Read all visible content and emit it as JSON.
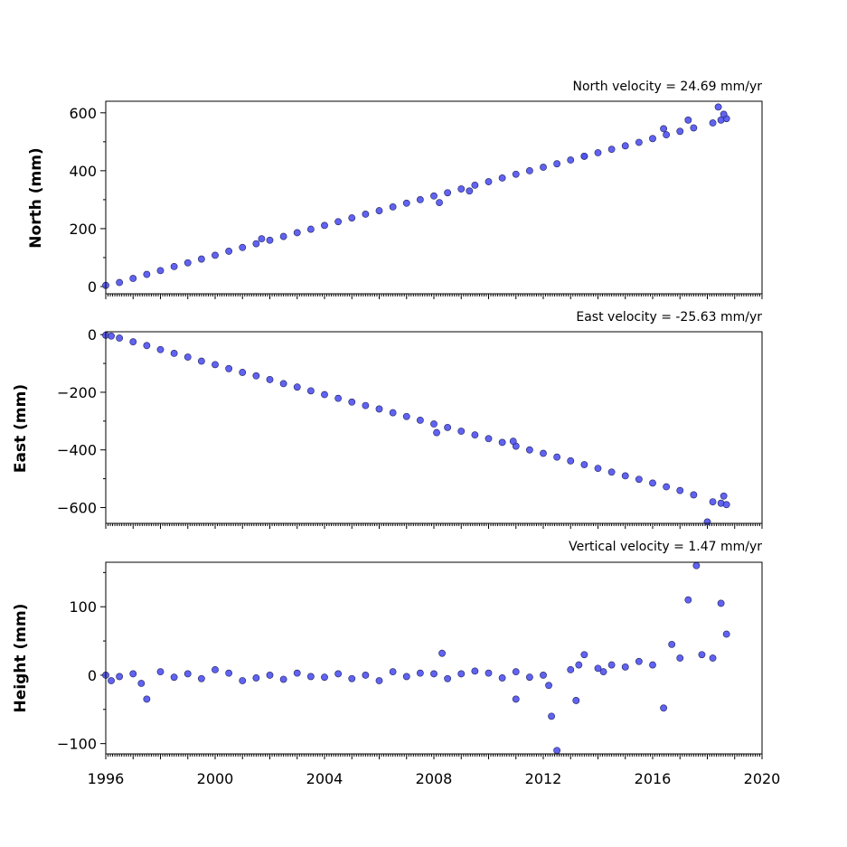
{
  "chart_data": [
    {
      "type": "scatter",
      "title": "North velocity = 24.69 mm/yr",
      "ylabel": "North (mm)",
      "xlim": [
        1996,
        2020
      ],
      "ylim": [
        -25,
        640
      ],
      "yticks": [
        0,
        200,
        400,
        600
      ],
      "xticks_labeled": false,
      "grid": false,
      "legend": "none",
      "series": [
        {
          "x": [
            1996.0,
            1996.5,
            1997.0,
            1997.5,
            1998.0,
            1998.5,
            1999.0,
            1999.5,
            2000.0,
            2000.5,
            2001.0,
            2001.5,
            2002.0,
            2002.5,
            2003.0,
            2003.5,
            2004.0,
            2004.5,
            2005.0,
            2005.5,
            2006.0,
            2006.5,
            2007.0,
            2007.5,
            2008.0,
            2008.5,
            2009.0,
            2009.5,
            2010.0,
            2010.5,
            2011.0,
            2011.5,
            2012.0,
            2012.5,
            2013.0,
            2013.5,
            2014.0,
            2014.5,
            2015.0,
            2015.5,
            2016.0,
            2016.5,
            2017.0,
            2017.5,
            2018.2,
            2018.5,
            2018.7,
            2008.2,
            2009.3,
            2001.7,
            2013.5,
            2016.4,
            2017.3,
            2018.4,
            2018.6
          ],
          "y": [
            4,
            14,
            28,
            42,
            55,
            69,
            82,
            95,
            108,
            122,
            135,
            148,
            160,
            173,
            186,
            198,
            211,
            224,
            237,
            250,
            262,
            275,
            288,
            300,
            313,
            324,
            337,
            350,
            362,
            375,
            388,
            400,
            412,
            424,
            437,
            450,
            462,
            474,
            486,
            498,
            511,
            524,
            536,
            548,
            565,
            575,
            580,
            290,
            330,
            165,
            450,
            545,
            575,
            620,
            595
          ]
        }
      ]
    },
    {
      "type": "scatter",
      "title": "East velocity = -25.63 mm/yr",
      "ylabel": "East (mm)",
      "xlim": [
        1996,
        2020
      ],
      "ylim": [
        -655,
        10
      ],
      "yticks": [
        0,
        -200,
        -400,
        -600
      ],
      "xticks_labeled": false,
      "grid": false,
      "legend": "none",
      "series": [
        {
          "x": [
            1996.0,
            1996.2,
            1996.5,
            1997.0,
            1997.5,
            1998.0,
            1998.5,
            1999.0,
            1999.5,
            2000.0,
            2000.5,
            2001.0,
            2001.5,
            2002.0,
            2002.5,
            2003.0,
            2003.5,
            2004.0,
            2004.5,
            2005.0,
            2005.5,
            2006.0,
            2006.5,
            2007.0,
            2007.5,
            2008.0,
            2008.5,
            2009.0,
            2009.5,
            2010.0,
            2010.5,
            2011.0,
            2011.5,
            2012.0,
            2012.5,
            2013.0,
            2013.5,
            2014.0,
            2014.5,
            2015.0,
            2015.5,
            2016.0,
            2016.5,
            2017.0,
            2017.5,
            2018.2,
            2018.5,
            2018.7,
            2010.9,
            2008.1,
            2018.0,
            2018.6
          ],
          "y": [
            -2,
            -5,
            -12,
            -25,
            -38,
            -52,
            -65,
            -78,
            -92,
            -104,
            -118,
            -131,
            -143,
            -156,
            -170,
            -182,
            -195,
            -208,
            -221,
            -234,
            -246,
            -258,
            -271,
            -284,
            -297,
            -310,
            -322,
            -335,
            -348,
            -361,
            -374,
            -387,
            -400,
            -412,
            -425,
            -438,
            -451,
            -464,
            -477,
            -490,
            -502,
            -515,
            -528,
            -541,
            -556,
            -580,
            -585,
            -590,
            -370,
            -340,
            -650,
            -560
          ]
        }
      ]
    },
    {
      "type": "scatter",
      "title": "Vertical velocity = 1.47 mm/yr",
      "ylabel": "Height (mm)",
      "xlim": [
        1996,
        2020
      ],
      "ylim": [
        -115,
        165
      ],
      "yticks": [
        -100,
        0,
        100
      ],
      "xticks": [
        1996,
        2000,
        2004,
        2008,
        2012,
        2016,
        2020
      ],
      "grid": false,
      "legend": "none",
      "series": [
        {
          "x": [
            1996.0,
            1996.2,
            1996.5,
            1997.0,
            1997.3,
            1997.5,
            1998.0,
            1998.5,
            1999.0,
            1999.5,
            2000.0,
            2000.5,
            2001.0,
            2001.5,
            2002.0,
            2002.5,
            2003.0,
            2003.5,
            2004.0,
            2004.5,
            2005.0,
            2005.5,
            2006.0,
            2006.5,
            2007.0,
            2007.5,
            2008.0,
            2008.3,
            2008.5,
            2009.0,
            2009.5,
            2010.0,
            2010.5,
            2011.0,
            2011.5,
            2012.0,
            2012.3,
            2012.5,
            2013.0,
            2013.3,
            2013.5,
            2014.0,
            2014.5,
            2015.0,
            2015.5,
            2016.0,
            2016.4,
            2016.7,
            2017.0,
            2017.3,
            2017.6,
            2017.8,
            2018.2,
            2018.5,
            2018.7,
            2011.0,
            2012.2,
            2013.2,
            2014.2
          ],
          "y": [
            0,
            -8,
            -2,
            2,
            -12,
            -35,
            5,
            -3,
            2,
            -5,
            8,
            3,
            -8,
            -4,
            0,
            -6,
            3,
            -2,
            -3,
            2,
            -5,
            0,
            -8,
            5,
            -2,
            3,
            2,
            32,
            -5,
            2,
            6,
            3,
            -4,
            5,
            -3,
            0,
            -60,
            -110,
            8,
            15,
            30,
            10,
            15,
            12,
            20,
            15,
            -48,
            45,
            25,
            110,
            160,
            30,
            25,
            105,
            60,
            -35,
            -15,
            -37,
            5
          ]
        }
      ]
    }
  ],
  "marker": {
    "fill": "#4f52ef",
    "edge": "#1f1f5c"
  }
}
